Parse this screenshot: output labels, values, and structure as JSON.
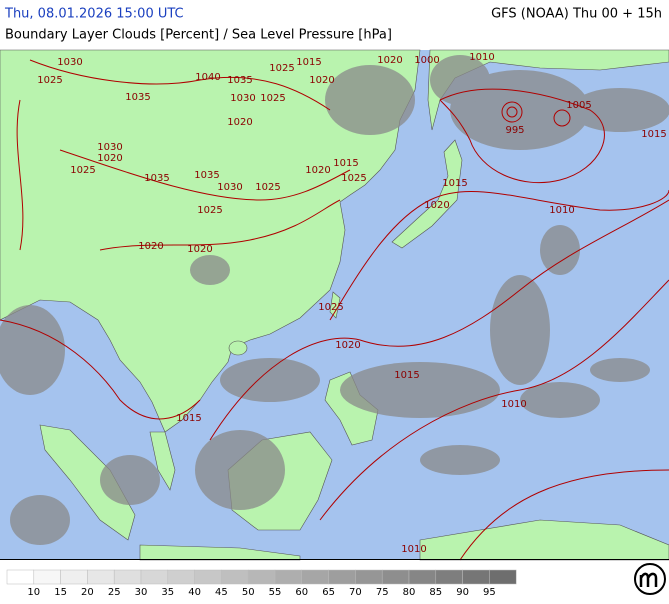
{
  "header": {
    "left": "Thu, 08.01.2026 15:00 UTC",
    "right": "GFS (NOAA) Thu 00 + 15h",
    "subtitle": "Boundary Layer Clouds [Percent] / Sea Level Pressure [hPa]"
  },
  "isobar_labels": [
    "1030",
    "1025",
    "1035",
    "1040",
    "1035",
    "1030",
    "1025",
    "1025",
    "1015",
    "1020",
    "1020",
    "1020",
    "1030",
    "1020",
    "1025",
    "1035",
    "1035",
    "1030",
    "1025",
    "1020",
    "1015",
    "1025",
    "1025",
    "1020",
    "1020",
    "1015",
    "1020",
    "1010",
    "1000",
    "1005",
    "995",
    "1015",
    "1010",
    "1025",
    "1020",
    "1015",
    "1010",
    "1015",
    "1010"
  ],
  "legend": {
    "labels": [
      10,
      15,
      20,
      25,
      30,
      35,
      40,
      45,
      50,
      55,
      60,
      65,
      70,
      75,
      80,
      85,
      90,
      95
    ]
  }
}
